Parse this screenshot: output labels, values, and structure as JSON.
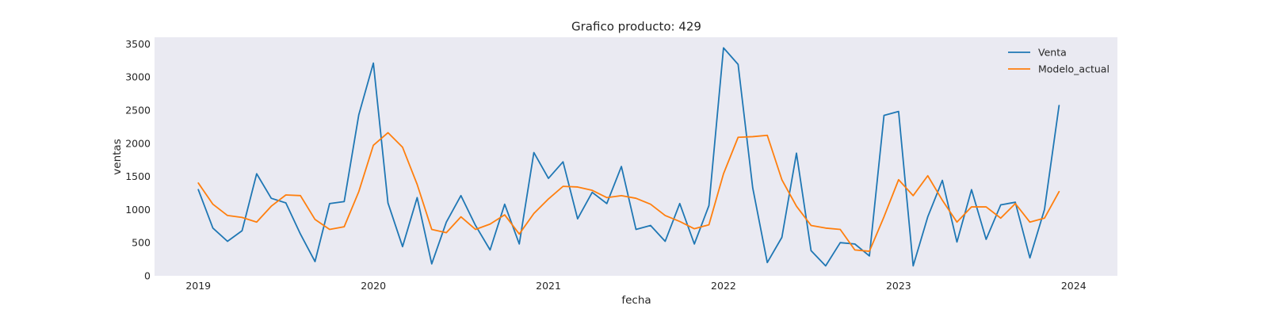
{
  "chart_data": {
    "type": "line",
    "title": "Grafico producto: 429",
    "xlabel": "fecha",
    "ylabel": "ventas",
    "x_ticks": [
      "2019",
      "2020",
      "2021",
      "2022",
      "2023",
      "2024"
    ],
    "y_ticks": [
      "0",
      "500",
      "1000",
      "1500",
      "2000",
      "2500",
      "3000",
      "3500"
    ],
    "ylim": [
      0,
      3600
    ],
    "xlim": [
      "2018-10",
      "2024-04"
    ],
    "grid": false,
    "legend_position": "top-right",
    "background": "#eaeaf2",
    "x": [
      "2019-01",
      "2019-02",
      "2019-03",
      "2019-04",
      "2019-05",
      "2019-06",
      "2019-07",
      "2019-08",
      "2019-09",
      "2019-10",
      "2019-11",
      "2019-12",
      "2020-01",
      "2020-02",
      "2020-03",
      "2020-04",
      "2020-05",
      "2020-06",
      "2020-07",
      "2020-08",
      "2020-09",
      "2020-10",
      "2020-11",
      "2020-12",
      "2021-01",
      "2021-02",
      "2021-03",
      "2021-04",
      "2021-05",
      "2021-06",
      "2021-07",
      "2021-08",
      "2021-09",
      "2021-10",
      "2021-11",
      "2021-12",
      "2022-01",
      "2022-02",
      "2022-03",
      "2022-04",
      "2022-05",
      "2022-06",
      "2022-07",
      "2022-08",
      "2022-09",
      "2022-10",
      "2022-11",
      "2022-12",
      "2023-01",
      "2023-02",
      "2023-03",
      "2023-04",
      "2023-05",
      "2023-06",
      "2023-07",
      "2023-08",
      "2023-09",
      "2023-10",
      "2023-11",
      "2023-12"
    ],
    "series": [
      {
        "name": "Venta",
        "color": "#1f77b4",
        "values": [
          1300,
          720,
          520,
          680,
          1540,
          1170,
          1100,
          630,
          215,
          1090,
          1120,
          2430,
          3210,
          1100,
          440,
          1180,
          180,
          810,
          1210,
          760,
          390,
          1080,
          480,
          1860,
          1470,
          1720,
          860,
          1260,
          1090,
          1650,
          700,
          760,
          520,
          1090,
          480,
          1060,
          3440,
          3190,
          1330,
          200,
          580,
          1850,
          380,
          150,
          500,
          480,
          300,
          2420,
          2480,
          150,
          890,
          1440,
          510,
          1300,
          550,
          1070,
          1110,
          270,
          1000,
          2570
        ]
      },
      {
        "name": "Modelo_actual",
        "color": "#ff7f0e",
        "values": [
          1400,
          1080,
          910,
          880,
          810,
          1050,
          1220,
          1210,
          850,
          700,
          740,
          1270,
          1970,
          2160,
          1940,
          1380,
          700,
          650,
          890,
          700,
          780,
          920,
          630,
          940,
          1160,
          1350,
          1340,
          1290,
          1180,
          1210,
          1170,
          1080,
          910,
          820,
          710,
          770,
          1540,
          2090,
          2100,
          2120,
          1450,
          1050,
          760,
          720,
          700,
          390,
          370,
          890,
          1450,
          1210,
          1510,
          1140,
          810,
          1040,
          1040,
          870,
          1090,
          810,
          870,
          1270
        ]
      }
    ]
  }
}
